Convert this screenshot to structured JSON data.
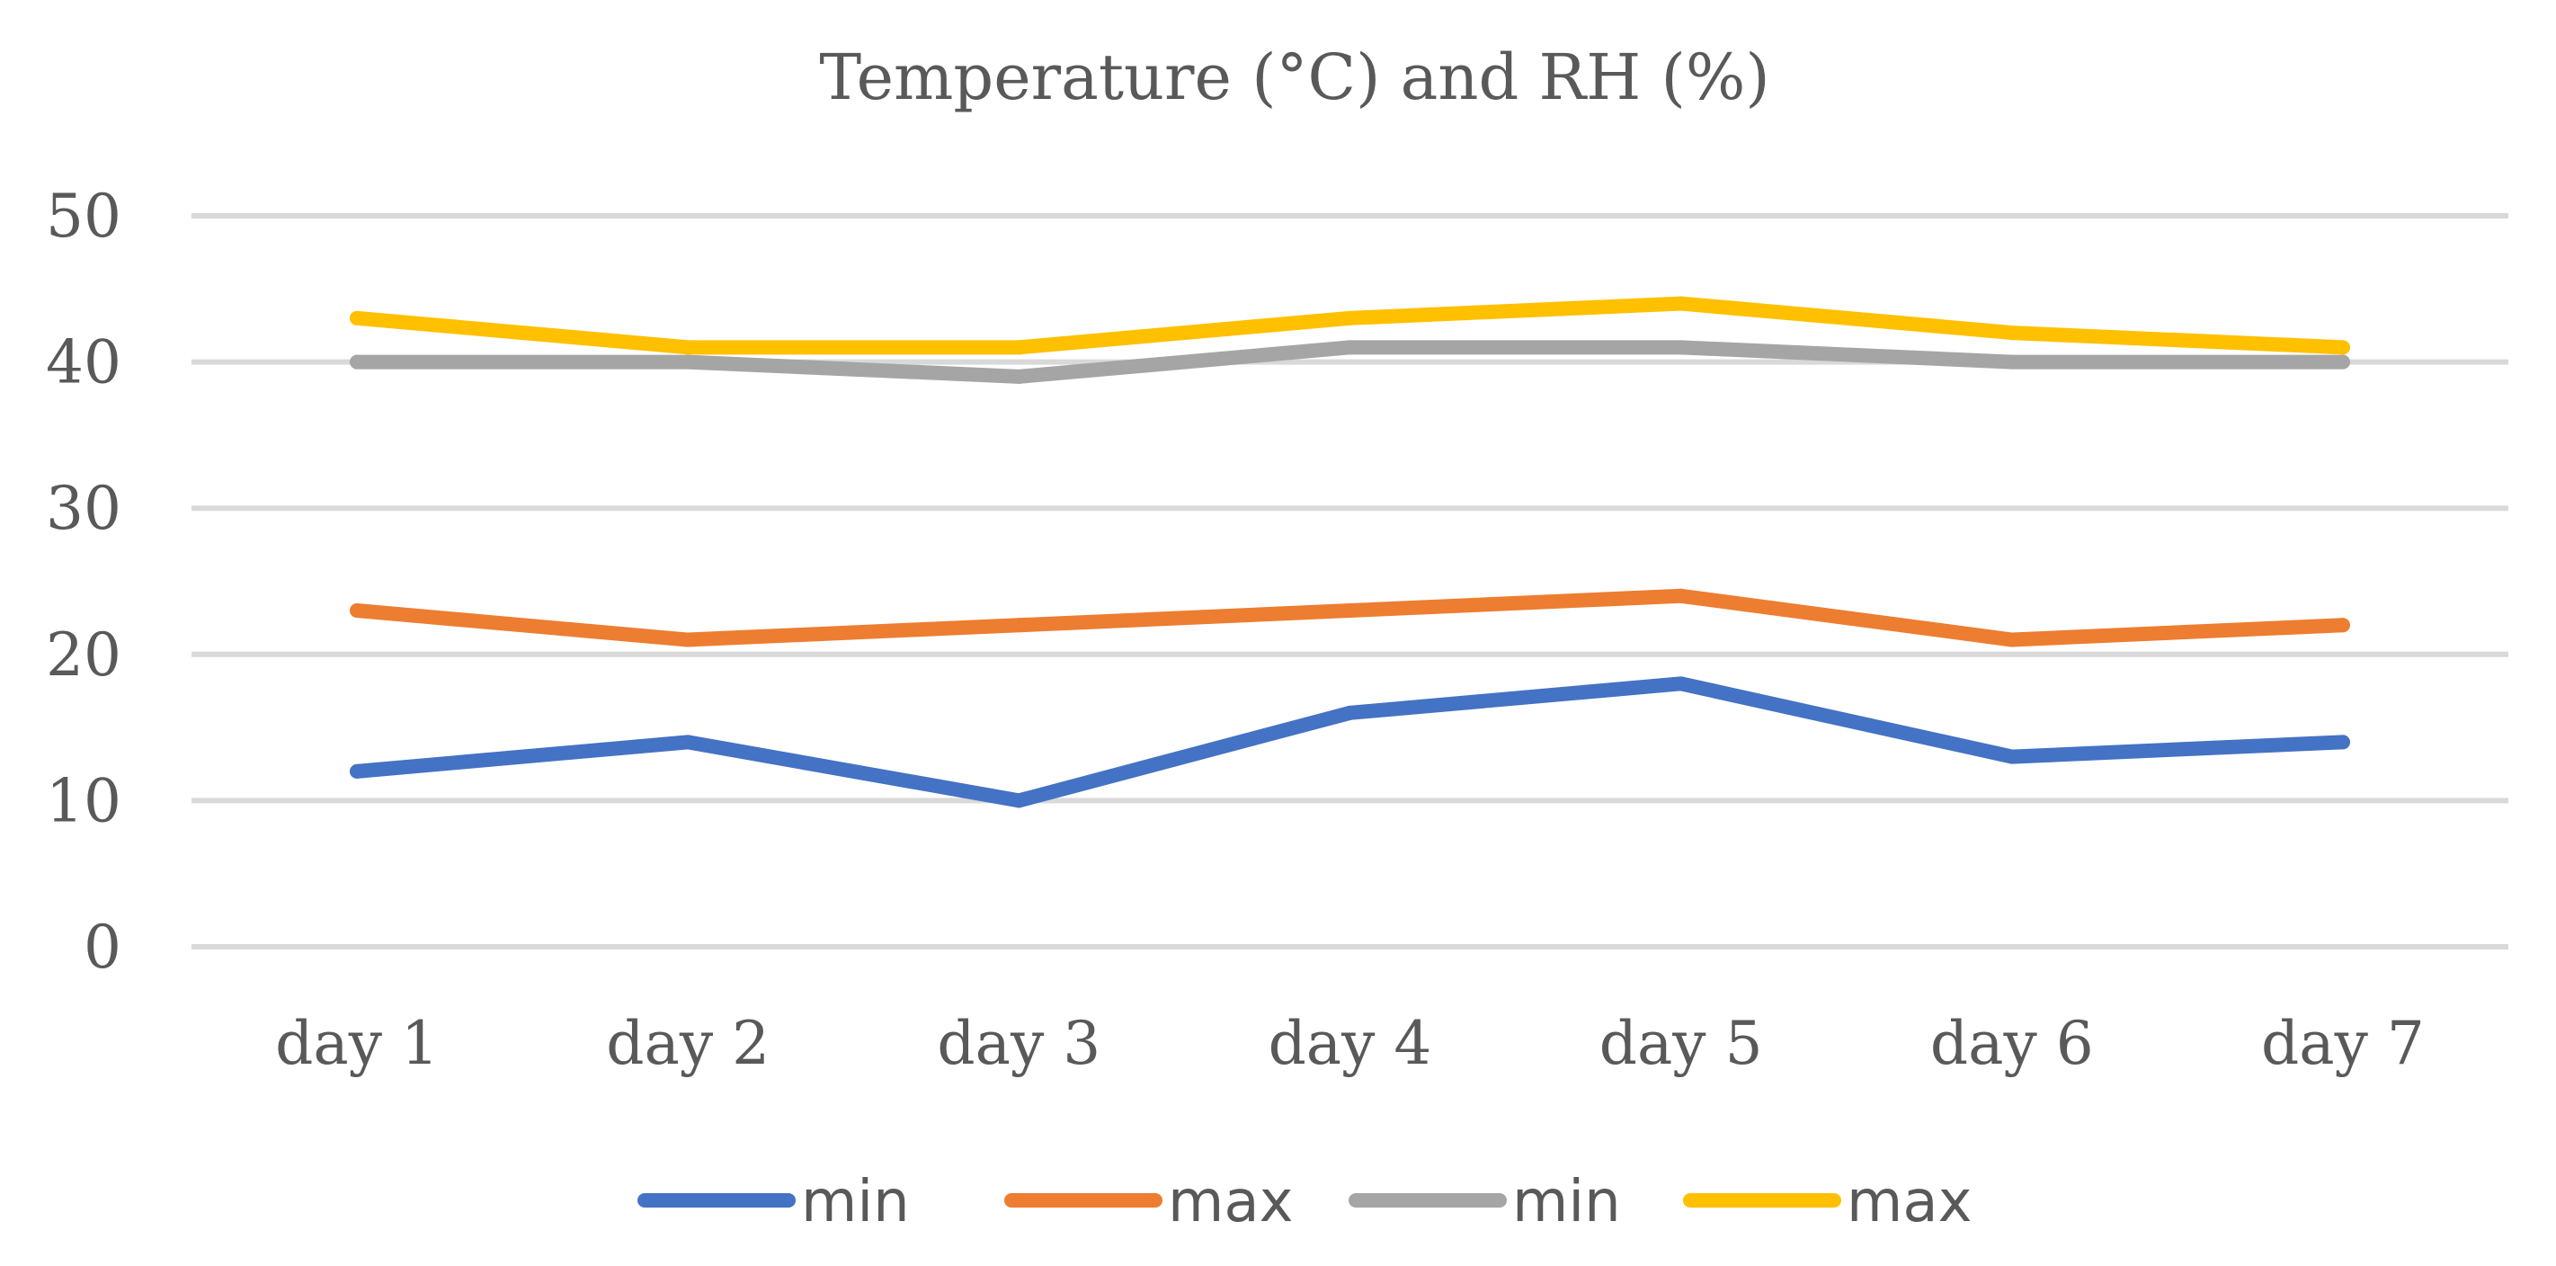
{
  "chart_data": {
    "type": "line",
    "title": "Temperature (°C) and RH (%)",
    "xlabel": "",
    "ylabel": "",
    "categories": [
      "day 1",
      "day 2",
      "day 3",
      "day 4",
      "day 5",
      "day 6",
      "day 7"
    ],
    "ylim": [
      0,
      50
    ],
    "yticks": [
      0,
      10,
      20,
      30,
      40,
      50
    ],
    "grid": true,
    "legend_position": "bottom",
    "series": [
      {
        "name": "min",
        "color": "#4472C4",
        "values": [
          12,
          14,
          10,
          16,
          18,
          13,
          14
        ]
      },
      {
        "name": "max",
        "color": "#ED7D31",
        "values": [
          23,
          21,
          22,
          23,
          24,
          21,
          22
        ]
      },
      {
        "name": "min",
        "color": "#A5A5A5",
        "values": [
          40,
          40,
          39,
          41,
          41,
          40,
          40
        ]
      },
      {
        "name": "max",
        "color": "#FFC000",
        "values": [
          43,
          41,
          41,
          43,
          44,
          42,
          41
        ]
      }
    ]
  }
}
